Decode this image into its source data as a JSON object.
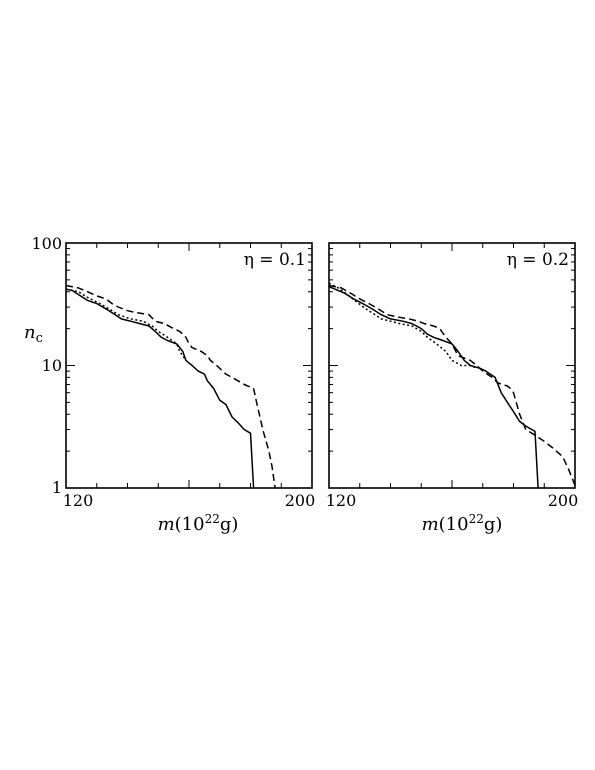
{
  "chart_data": [
    {
      "type": "line",
      "title": "",
      "panel_label": "η = 0.1",
      "xlabel": "m(10²²g)",
      "ylabel": "n_c",
      "ylabel_main": "n",
      "ylabel_sub": "c",
      "xlim": [
        120,
        200
      ],
      "ylim": [
        1,
        100
      ],
      "yscale": "log",
      "x_tick_labels": [
        "120",
        "200"
      ],
      "y_tick_labels": [
        "100",
        "10",
        "1"
      ],
      "series": [
        {
          "style": "solid",
          "points": [
            [
              120,
              42
            ],
            [
              122,
              41
            ],
            [
              124,
              38
            ],
            [
              127,
              34
            ],
            [
              130,
              32
            ],
            [
              132,
              30
            ],
            [
              134,
              28
            ],
            [
              136,
              26
            ],
            [
              138,
              24
            ],
            [
              141,
              23
            ],
            [
              144,
              22
            ],
            [
              147,
              21
            ],
            [
              149,
              19
            ],
            [
              151,
              17
            ],
            [
              153,
              16
            ],
            [
              156,
              15
            ],
            [
              157,
              14
            ],
            [
              158,
              13
            ],
            [
              159,
              11
            ],
            [
              161,
              10
            ],
            [
              163,
              9
            ],
            [
              165,
              8.5
            ],
            [
              166,
              7.5
            ],
            [
              168,
              6.5
            ],
            [
              170,
              5.2
            ],
            [
              172,
              4.8
            ],
            [
              174,
              3.8
            ],
            [
              176,
              3.4
            ],
            [
              178,
              3.0
            ],
            [
              180,
              2.8
            ],
            [
              181,
              1.0
            ]
          ]
        },
        {
          "style": "dashed",
          "points": [
            [
              120,
              45
            ],
            [
              124,
              43
            ],
            [
              127,
              40
            ],
            [
              130,
              37
            ],
            [
              133,
              35
            ],
            [
              135,
              32
            ],
            [
              137,
              30
            ],
            [
              140,
              28
            ],
            [
              143,
              27
            ],
            [
              147,
              26
            ],
            [
              149,
              23
            ],
            [
              152,
              22
            ],
            [
              155,
              20
            ],
            [
              157,
              19
            ],
            [
              159,
              17
            ],
            [
              160,
              15
            ],
            [
              161,
              14
            ],
            [
              164,
              13
            ],
            [
              166,
              12
            ],
            [
              167,
              11
            ],
            [
              169,
              10
            ],
            [
              172,
              8.5
            ],
            [
              174,
              8
            ],
            [
              178,
              7
            ],
            [
              181,
              6.5
            ],
            [
              182,
              5
            ],
            [
              184,
              3
            ],
            [
              186,
              2
            ],
            [
              187,
              1.5
            ],
            [
              188,
              1.0
            ]
          ]
        },
        {
          "style": "dotted",
          "points": [
            [
              120,
              42
            ],
            [
              124,
              40
            ],
            [
              127,
              36
            ],
            [
              130,
              33
            ],
            [
              133,
              30
            ],
            [
              135,
              28
            ],
            [
              137,
              26
            ],
            [
              141,
              24
            ],
            [
              145,
              23
            ],
            [
              148,
              21
            ],
            [
              150,
              19
            ],
            [
              153,
              17
            ],
            [
              156,
              15
            ],
            [
              157,
              13
            ],
            [
              158,
              12
            ],
            [
              159,
              11
            ]
          ]
        }
      ]
    },
    {
      "type": "line",
      "title": "",
      "panel_label": "η = 0.2",
      "xlabel": "m(10²²g)",
      "xlim": [
        120,
        200
      ],
      "ylim": [
        1,
        100
      ],
      "yscale": "log",
      "x_tick_labels": [
        "120",
        "200"
      ],
      "series": [
        {
          "style": "solid",
          "points": [
            [
              120,
              44
            ],
            [
              122,
              42
            ],
            [
              125,
              39
            ],
            [
              128,
              35
            ],
            [
              131,
              32
            ],
            [
              134,
              29
            ],
            [
              137,
              26
            ],
            [
              140,
              24
            ],
            [
              144,
              23
            ],
            [
              147,
              22
            ],
            [
              150,
              20
            ],
            [
              152,
              18
            ],
            [
              154,
              17
            ],
            [
              157,
              16
            ],
            [
              160,
              15
            ],
            [
              162,
              13
            ],
            [
              164,
              11
            ],
            [
              166,
              10
            ],
            [
              169,
              9.5
            ],
            [
              171,
              9
            ],
            [
              174,
              8
            ],
            [
              176,
              6
            ],
            [
              178,
              5
            ],
            [
              180,
              4.2
            ],
            [
              182,
              3.5
            ],
            [
              184,
              3.2
            ],
            [
              186,
              3.0
            ],
            [
              187,
              2.9
            ],
            [
              188,
              1.0
            ]
          ]
        },
        {
          "style": "dashed",
          "points": [
            [
              120,
              45
            ],
            [
              124,
              43
            ],
            [
              127,
              39
            ],
            [
              130,
              35
            ],
            [
              133,
              32
            ],
            [
              136,
              29
            ],
            [
              139,
              26
            ],
            [
              142,
              25
            ],
            [
              146,
              24
            ],
            [
              149,
              23
            ],
            [
              151,
              22
            ],
            [
              154,
              21
            ],
            [
              156,
              20
            ],
            [
              158,
              17
            ],
            [
              160,
              15
            ],
            [
              162,
              12
            ],
            [
              164,
              11.5
            ],
            [
              166,
              11
            ],
            [
              168,
              10
            ],
            [
              170,
              9
            ],
            [
              173,
              8
            ],
            [
              175,
              7.2
            ],
            [
              178,
              6.8
            ],
            [
              179,
              6.5
            ],
            [
              180,
              6
            ],
            [
              182,
              4
            ],
            [
              184,
              3
            ],
            [
              187,
              2.7
            ],
            [
              190,
              2.4
            ],
            [
              193,
              2.1
            ],
            [
              196,
              1.8
            ],
            [
              198,
              1.4
            ],
            [
              200,
              1.05
            ]
          ]
        },
        {
          "style": "dotted",
          "points": [
            [
              120,
              47
            ],
            [
              123,
              43
            ],
            [
              126,
              38
            ],
            [
              129,
              33
            ],
            [
              132,
              29
            ],
            [
              135,
              26
            ],
            [
              137,
              24
            ],
            [
              140,
              23
            ],
            [
              143,
              22
            ],
            [
              147,
              21
            ],
            [
              150,
              19
            ],
            [
              152,
              17
            ],
            [
              155,
              15
            ],
            [
              158,
              13
            ],
            [
              160,
              11
            ],
            [
              163,
              10
            ],
            [
              166,
              10
            ],
            [
              168,
              9.5
            ]
          ]
        }
      ]
    }
  ]
}
